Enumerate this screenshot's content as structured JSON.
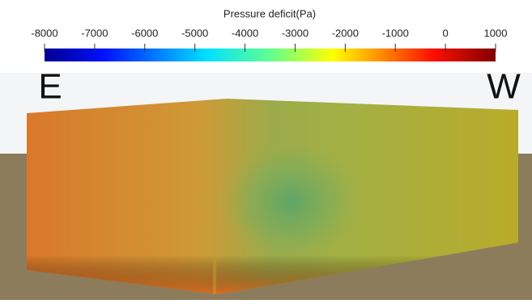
{
  "colorbar": {
    "title": "Pressure deficit(Pa)",
    "lim": [
      -8000,
      1000
    ],
    "ticks": [
      -8000,
      -7000,
      -6000,
      -5000,
      -4000,
      -3000,
      -2000,
      -1000,
      0,
      1000
    ]
  },
  "labels": {
    "left": "E",
    "right": "W"
  }
}
